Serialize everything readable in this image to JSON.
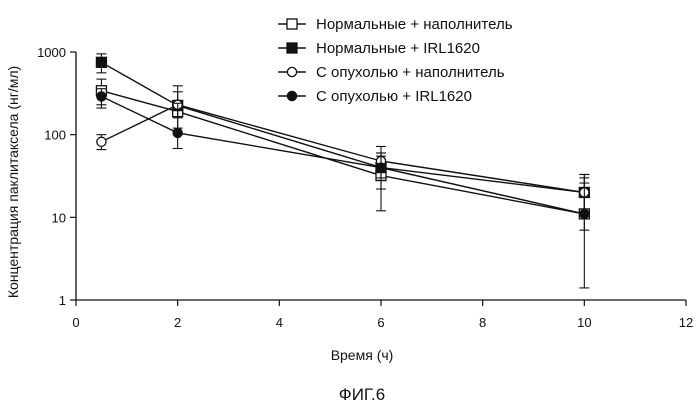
{
  "chart_data": {
    "type": "line",
    "xlabel": "Время (ч)",
    "ylabel": "Концентрация паклитаксела (нг/мл)",
    "xlim": [
      0,
      12
    ],
    "ylim": [
      1,
      1000
    ],
    "y_scale": "log",
    "x_ticks": [
      "0",
      "2",
      "4",
      "6",
      "8",
      "10",
      "12"
    ],
    "x_tick_values": [
      0,
      2,
      4,
      6,
      8,
      10,
      12
    ],
    "y_ticks": [
      "1",
      "10",
      "100",
      "1000"
    ],
    "y_tick_values": [
      1,
      10,
      100,
      1000
    ],
    "grid": false,
    "legend_position": "top-right",
    "caption": "ФИГ.6",
    "series": [
      {
        "name": "Нормальные + наполнитель",
        "marker": "open-square",
        "x": [
          0.5,
          2,
          6,
          10
        ],
        "y": [
          340,
          190,
          32,
          11
        ],
        "err_low": [
          230,
          120,
          12,
          1.4
        ],
        "err_high": [
          470,
          260,
          55,
          33
        ]
      },
      {
        "name": "Нормальные + IRL1620",
        "marker": "filled-square",
        "x": [
          0.5,
          2,
          6,
          10
        ],
        "y": [
          750,
          225,
          40,
          20
        ],
        "err_low": [
          560,
          160,
          28,
          11
        ],
        "err_high": [
          950,
          390,
          60,
          33
        ]
      },
      {
        "name": "С опухолью + наполнитель",
        "marker": "open-circle",
        "x": [
          0.5,
          2,
          6,
          10
        ],
        "y": [
          82,
          230,
          48,
          20
        ],
        "err_low": [
          66,
          165,
          30,
          11
        ],
        "err_high": [
          100,
          330,
          72,
          30
        ]
      },
      {
        "name": "С опухолью + IRL1620",
        "marker": "filled-circle",
        "x": [
          0.5,
          2,
          6,
          10
        ],
        "y": [
          290,
          105,
          40,
          11
        ],
        "err_low": [
          210,
          68,
          22,
          7
        ],
        "err_high": [
          360,
          240,
          60,
          26
        ]
      }
    ]
  }
}
